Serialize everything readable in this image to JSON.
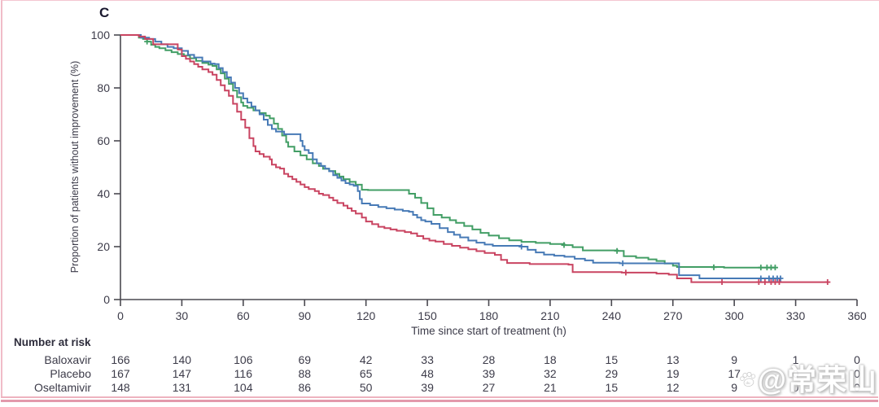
{
  "panel_label": "C",
  "watermark": {
    "text": "@常荣山",
    "paw_label": "du"
  },
  "frame": {
    "border_color": "#f0bcc8",
    "rule_color_light": "#eeb3bf",
    "rule_color_dark": "#e39aac"
  },
  "chart_data": {
    "type": "line",
    "subtype": "kaplan-meier-step",
    "title": "C",
    "xlabel": "Time since start of treatment (h)",
    "ylabel": "Proportion of patients without improvement (%)",
    "xlim": [
      0,
      360
    ],
    "ylim": [
      0,
      100
    ],
    "x_ticks": [
      0,
      30,
      60,
      90,
      120,
      150,
      180,
      210,
      240,
      270,
      300,
      330,
      360
    ],
    "y_ticks": [
      0,
      20,
      40,
      60,
      80,
      100
    ],
    "grid": false,
    "legend": "none (series identified in risk table)",
    "axis_color": "#4a4950",
    "series": [
      {
        "name": "Placebo",
        "color": "#429e65",
        "points": [
          [
            0,
            100
          ],
          [
            9,
            100
          ],
          [
            9,
            99
          ],
          [
            11,
            98.5
          ],
          [
            13,
            97.5
          ],
          [
            15,
            96.3
          ],
          [
            17,
            95.5
          ],
          [
            19,
            95
          ],
          [
            22,
            94.2
          ],
          [
            25,
            93.5
          ],
          [
            28,
            92.8
          ],
          [
            31,
            92.2
          ],
          [
            34,
            91.2
          ],
          [
            37,
            90.2
          ],
          [
            40,
            89.4
          ],
          [
            43,
            88.8
          ],
          [
            45,
            88.3
          ],
          [
            47,
            87
          ],
          [
            49,
            85.5
          ],
          [
            51,
            83.5
          ],
          [
            53,
            81.5
          ],
          [
            55,
            79
          ],
          [
            57,
            76.5
          ],
          [
            59,
            74.5
          ],
          [
            60,
            73.2
          ],
          [
            62,
            72.5
          ],
          [
            65,
            71.5
          ],
          [
            68,
            70.5
          ],
          [
            71,
            69.5
          ],
          [
            73,
            68.5
          ],
          [
            75,
            66.5
          ],
          [
            77,
            64.5
          ],
          [
            79,
            62
          ],
          [
            81,
            59.5
          ],
          [
            82,
            57.8
          ],
          [
            85,
            56
          ],
          [
            88,
            54.5
          ],
          [
            91,
            53
          ],
          [
            94,
            51.5
          ],
          [
            97,
            50.5
          ],
          [
            99,
            49.4
          ],
          [
            102,
            48.6
          ],
          [
            105,
            47.5
          ],
          [
            107,
            46.5
          ],
          [
            109,
            45.5
          ],
          [
            112,
            44.5
          ],
          [
            115,
            43.4
          ],
          [
            118,
            41.5
          ],
          [
            121,
            41.4
          ],
          [
            139,
            41.4
          ],
          [
            141,
            40
          ],
          [
            144,
            38.5
          ],
          [
            147,
            36.5
          ],
          [
            150,
            34.5
          ],
          [
            153,
            32
          ],
          [
            157,
            31
          ],
          [
            161,
            30
          ],
          [
            164,
            29
          ],
          [
            168,
            27.8
          ],
          [
            172,
            26.5
          ],
          [
            176,
            25.2
          ],
          [
            180,
            24.2
          ],
          [
            185,
            23.2
          ],
          [
            190,
            22.4
          ],
          [
            196,
            21.8
          ],
          [
            203,
            21.4
          ],
          [
            210,
            21
          ],
          [
            217,
            20.6
          ],
          [
            221,
            19.8
          ],
          [
            226,
            18.6
          ],
          [
            243,
            18.4
          ],
          [
            246,
            16.4
          ],
          [
            252,
            15.8
          ],
          [
            258,
            15.2
          ],
          [
            262,
            14.6
          ],
          [
            266,
            13.6
          ],
          [
            270,
            12.8
          ],
          [
            272,
            12.3
          ],
          [
            295,
            12.1
          ],
          [
            320,
            12.1
          ]
        ],
        "censors": [
          [
            13,
            97.5
          ],
          [
            216.8,
            20.6
          ],
          [
            242.7,
            18.4
          ],
          [
            290,
            12.2
          ],
          [
            313,
            12.1
          ],
          [
            316,
            12.1
          ],
          [
            318,
            12.1
          ],
          [
            320,
            12.1
          ]
        ]
      },
      {
        "name": "Oseltamivir",
        "color": "#477ab6",
        "points": [
          [
            0,
            100
          ],
          [
            10,
            100
          ],
          [
            10,
            99
          ],
          [
            14,
            98.5
          ],
          [
            17,
            97.5
          ],
          [
            20,
            96.5
          ],
          [
            23,
            95.5
          ],
          [
            26,
            95
          ],
          [
            30,
            94
          ],
          [
            33,
            92.5
          ],
          [
            36,
            91.5
          ],
          [
            40,
            90
          ],
          [
            44,
            89.2
          ],
          [
            46,
            89
          ],
          [
            48,
            87.5
          ],
          [
            50,
            86
          ],
          [
            52,
            84
          ],
          [
            54,
            82
          ],
          [
            56,
            80
          ],
          [
            58,
            78
          ],
          [
            60,
            76
          ],
          [
            62,
            74.5
          ],
          [
            64,
            73
          ],
          [
            66,
            71.5
          ],
          [
            68,
            70
          ],
          [
            70,
            68
          ],
          [
            72,
            66
          ],
          [
            74,
            64.5
          ],
          [
            76,
            63.5
          ],
          [
            80,
            62.5
          ],
          [
            87,
            62.5
          ],
          [
            88,
            60
          ],
          [
            89,
            58
          ],
          [
            90,
            56.5
          ],
          [
            92,
            55.4
          ],
          [
            94,
            53
          ],
          [
            96,
            51.5
          ],
          [
            98,
            50.5
          ],
          [
            100,
            49.5
          ],
          [
            102,
            48.5
          ],
          [
            104,
            47
          ],
          [
            106,
            46
          ],
          [
            108,
            45
          ],
          [
            110,
            44
          ],
          [
            112,
            43.5
          ],
          [
            114,
            43
          ],
          [
            116,
            41
          ],
          [
            117,
            38
          ],
          [
            118,
            36.3
          ],
          [
            122,
            35.7
          ],
          [
            126,
            35
          ],
          [
            130,
            34.5
          ],
          [
            134,
            34
          ],
          [
            138,
            33.5
          ],
          [
            141,
            33.2
          ],
          [
            143,
            32
          ],
          [
            145,
            31
          ],
          [
            147,
            30
          ],
          [
            149,
            29.5
          ],
          [
            152,
            28.6
          ],
          [
            156,
            27
          ],
          [
            160,
            25.5
          ],
          [
            163,
            24.5
          ],
          [
            166,
            23.5
          ],
          [
            170,
            22.3
          ],
          [
            174,
            21.5
          ],
          [
            178,
            20.8
          ],
          [
            182,
            20.3
          ],
          [
            196,
            20
          ],
          [
            199,
            18.8
          ],
          [
            203,
            17.8
          ],
          [
            207,
            17
          ],
          [
            212,
            16.6
          ],
          [
            217,
            16.2
          ],
          [
            222,
            15.4
          ],
          [
            227,
            14.8
          ],
          [
            231,
            13.9
          ],
          [
            244,
            13.7
          ],
          [
            271,
            13.7
          ],
          [
            273,
            9.2
          ],
          [
            283,
            8
          ],
          [
            322.6,
            8
          ]
        ],
        "censors": [
          [
            196,
            20
          ],
          [
            245.5,
            13.7
          ],
          [
            313,
            8
          ],
          [
            317,
            8
          ],
          [
            319,
            8
          ],
          [
            321,
            8
          ],
          [
            322.6,
            8
          ]
        ]
      },
      {
        "name": "Baloxavir",
        "color": "#c94461",
        "points": [
          [
            0,
            100
          ],
          [
            9,
            100
          ],
          [
            9,
            99.4
          ],
          [
            12,
            99.4
          ],
          [
            12,
            98.5
          ],
          [
            16,
            98.5
          ],
          [
            16,
            96.5
          ],
          [
            27,
            96.5
          ],
          [
            28,
            94.5
          ],
          [
            30,
            92
          ],
          [
            32,
            91
          ],
          [
            34,
            90
          ],
          [
            36,
            89
          ],
          [
            38,
            88
          ],
          [
            40,
            87
          ],
          [
            43,
            86
          ],
          [
            45,
            85
          ],
          [
            47,
            83
          ],
          [
            49,
            81
          ],
          [
            51,
            79
          ],
          [
            53,
            77
          ],
          [
            55,
            74
          ],
          [
            57,
            71
          ],
          [
            59,
            68
          ],
          [
            61,
            65
          ],
          [
            63,
            61
          ],
          [
            65,
            58
          ],
          [
            66,
            56
          ],
          [
            68,
            55
          ],
          [
            70,
            54
          ],
          [
            73,
            53
          ],
          [
            74,
            51
          ],
          [
            76,
            50
          ],
          [
            78,
            49.5
          ],
          [
            80,
            47.5
          ],
          [
            82,
            46.5
          ],
          [
            84,
            45.5
          ],
          [
            86,
            44.5
          ],
          [
            88,
            43.5
          ],
          [
            90,
            42.5
          ],
          [
            92,
            41.8
          ],
          [
            95,
            41
          ],
          [
            97,
            40
          ],
          [
            99,
            39.5
          ],
          [
            102,
            38.5
          ],
          [
            104,
            37.5
          ],
          [
            106,
            36.5
          ],
          [
            109,
            35.5
          ],
          [
            111,
            34.5
          ],
          [
            113,
            33.5
          ],
          [
            115,
            32.5
          ],
          [
            118,
            31
          ],
          [
            120,
            29.5
          ],
          [
            123,
            28.5
          ],
          [
            126,
            27.5
          ],
          [
            129,
            27
          ],
          [
            132,
            26.5
          ],
          [
            135,
            26
          ],
          [
            139,
            25.5
          ],
          [
            142,
            25
          ],
          [
            145,
            24
          ],
          [
            148,
            23
          ],
          [
            151,
            22.3
          ],
          [
            154,
            21.9
          ],
          [
            158,
            21
          ],
          [
            162,
            20.3
          ],
          [
            166,
            19.6
          ],
          [
            170,
            19
          ],
          [
            174,
            18.3
          ],
          [
            178,
            17.6
          ],
          [
            183,
            16.9
          ],
          [
            186,
            15
          ],
          [
            189,
            13.8
          ],
          [
            200,
            13.4
          ],
          [
            219,
            13.2
          ],
          [
            221,
            10.4
          ],
          [
            245,
            10.2
          ],
          [
            262,
            9.8
          ],
          [
            268,
            9.4
          ],
          [
            272,
            8
          ],
          [
            279,
            6.6
          ],
          [
            345.6,
            6.6
          ]
        ],
        "censors": [
          [
            247,
            10.2
          ],
          [
            294,
            6.6
          ],
          [
            312,
            6.6
          ],
          [
            315,
            6.6
          ],
          [
            318,
            6.6
          ],
          [
            320,
            6.6
          ],
          [
            322,
            6.6
          ],
          [
            345.6,
            6.6
          ]
        ]
      }
    ],
    "risk_table": {
      "title": "Number at risk",
      "time_points": [
        0,
        30,
        60,
        90,
        120,
        150,
        180,
        210,
        240,
        270,
        300,
        330,
        360
      ],
      "rows": [
        {
          "name": "Baloxavir",
          "values": [
            166,
            140,
            106,
            69,
            42,
            33,
            28,
            18,
            15,
            13,
            9,
            1,
            0
          ]
        },
        {
          "name": "Placebo",
          "values": [
            167,
            147,
            116,
            88,
            65,
            48,
            39,
            32,
            29,
            19,
            17,
            0,
            0
          ]
        },
        {
          "name": "Oseltamivir",
          "values": [
            148,
            131,
            104,
            86,
            50,
            39,
            27,
            21,
            15,
            12,
            9,
            0,
            0
          ]
        }
      ]
    }
  }
}
